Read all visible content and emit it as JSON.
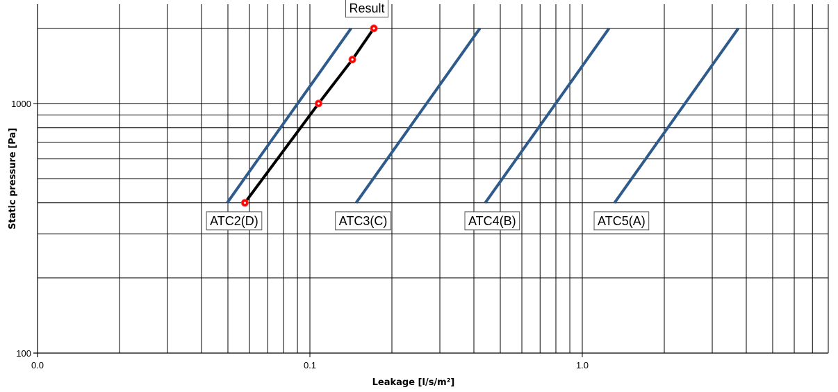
{
  "chart_data": {
    "type": "line",
    "title": "",
    "xlabel": "Leakage [l/s/m²]",
    "ylabel": "Static pressure [Pa]",
    "x_scale": "log",
    "y_scale": "log",
    "xlim": [
      0.01,
      8
    ],
    "ylim": [
      100,
      2500
    ],
    "x_tick_labels": [
      {
        "value": 0.01,
        "label": "0.0"
      },
      {
        "value": 0.1,
        "label": "0.1"
      },
      {
        "value": 1,
        "label": "1.0"
      }
    ],
    "y_tick_labels": [
      {
        "value": 100,
        "label": "100"
      },
      {
        "value": 1000,
        "label": "1000"
      }
    ],
    "grid": true,
    "colors": {
      "class_line": "#2e5b8b",
      "result_line": "#000000",
      "result_marker": "#ff0000"
    },
    "series": [
      {
        "name": "ATC2(D)",
        "label": "ATC2(D)",
        "x": [
          0.0497,
          0.1416
        ],
        "y": [
          400,
          2000
        ]
      },
      {
        "name": "ATC3(C)",
        "label": "ATC3(C)",
        "x": [
          0.1478,
          0.4209
        ],
        "y": [
          400,
          2000
        ]
      },
      {
        "name": "ATC4(B)",
        "label": "ATC4(B)",
        "x": [
          0.4403,
          1.2538
        ],
        "y": [
          400,
          2000
        ]
      },
      {
        "name": "ATC5(A)",
        "label": "ATC5(A)",
        "x": [
          1.3132,
          3.7392
        ],
        "y": [
          400,
          2000
        ]
      },
      {
        "name": "Result",
        "label": "Result",
        "x": [
          0.0577,
          0.1076,
          0.1432,
          0.1717
        ],
        "y": [
          400,
          1000,
          1500,
          2000
        ],
        "markers": true
      }
    ]
  }
}
